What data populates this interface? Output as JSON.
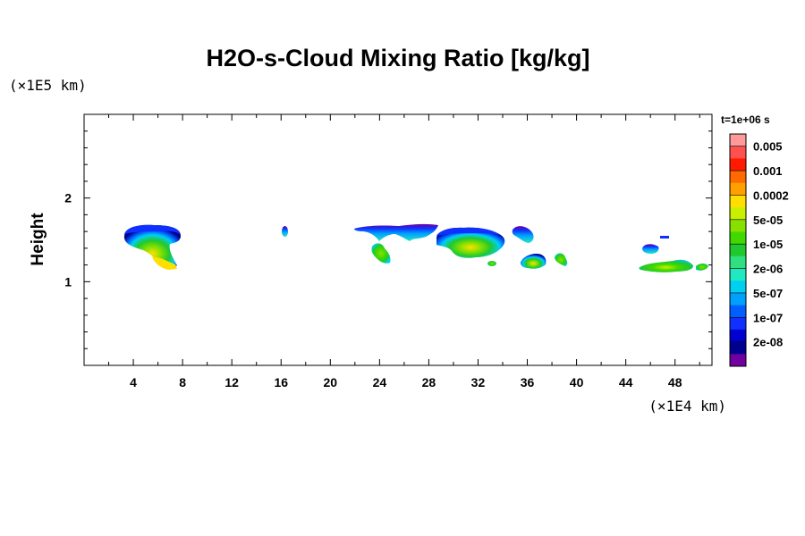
{
  "chart_data": {
    "type": "heatmap",
    "title": "H2O-s-Cloud Mixing Ratio [kg/kg]",
    "xlabel": "",
    "ylabel": "Height",
    "x_unit": "(×1E4 km)",
    "y_unit": "(×1E5 km)",
    "time_label": "t=1e+06 s",
    "xlim": [
      0,
      51
    ],
    "ylim": [
      0,
      3
    ],
    "x_ticks": [
      4,
      8,
      12,
      16,
      20,
      24,
      28,
      32,
      36,
      40,
      44,
      48
    ],
    "y_ticks": [
      1,
      2
    ],
    "colorbar": {
      "labels": [
        "0.005",
        "0.001",
        "0.0002",
        "5e-05",
        "1e-05",
        "2e-06",
        "5e-07",
        "1e-07",
        "2e-08"
      ],
      "colors_top_to_bottom": [
        "#ff9a9a",
        "#ff5050",
        "#ff1a00",
        "#ff6a00",
        "#ffa000",
        "#ffdf00",
        "#c8f000",
        "#88e000",
        "#40d800",
        "#20c830",
        "#30e080",
        "#20e8c0",
        "#00d0f0",
        "#00a0ff",
        "#0060ff",
        "#1030ff",
        "#0000d0",
        "#000090",
        "#7000a0"
      ]
    },
    "cloud_regions": [
      {
        "x_center": 5.4,
        "y_center": 1.45,
        "max_level": "5e-05",
        "min_level": "2e-08"
      },
      {
        "x_center": 16.4,
        "y_center": 1.6,
        "max_level": "1e-07",
        "min_level": "2e-08"
      },
      {
        "x_center": 24.0,
        "y_center": 1.35,
        "max_level": "1e-05",
        "min_level": "5e-07"
      },
      {
        "x_center": 25.5,
        "y_center": 1.58,
        "max_level": "5e-07",
        "min_level": "2e-08"
      },
      {
        "x_center": 31.2,
        "y_center": 1.45,
        "max_level": "5e-05",
        "min_level": "2e-08"
      },
      {
        "x_center": 36.0,
        "y_center": 1.55,
        "max_level": "5e-07",
        "min_level": "2e-08"
      },
      {
        "x_center": 36.5,
        "y_center": 1.22,
        "max_level": "5e-05",
        "min_level": "5e-07"
      },
      {
        "x_center": 39.0,
        "y_center": 1.28,
        "max_level": "1e-05",
        "min_level": "5e-07"
      },
      {
        "x_center": 34.3,
        "y_center": 1.2,
        "max_level": "1e-05",
        "min_level": "5e-07"
      },
      {
        "x_center": 45.8,
        "y_center": 1.38,
        "max_level": "5e-07",
        "min_level": "2e-08"
      },
      {
        "x_center": 47.0,
        "y_center": 1.18,
        "max_level": "5e-05",
        "min_level": "5e-07"
      },
      {
        "x_center": 50.0,
        "y_center": 1.18,
        "max_level": "1e-05",
        "min_level": "5e-07"
      }
    ]
  }
}
